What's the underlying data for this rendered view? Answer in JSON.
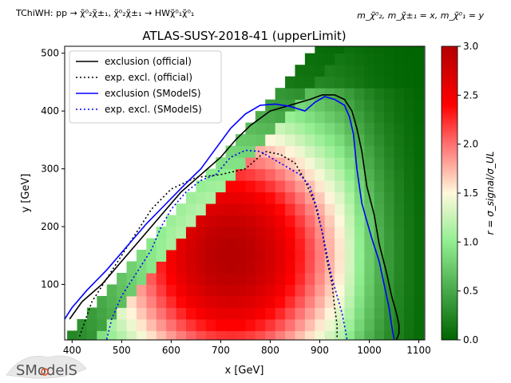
{
  "header": {
    "process": "TChiWH: pp → χ̃⁰₂χ̃±₁, χ̃⁰₂χ̃±₁ → HWχ̃⁰₁χ̃⁰₁",
    "mass_relation": "m_χ̃⁰₂, m_χ̃±₁ = x, m_χ̃⁰₁ = y"
  },
  "logo": {
    "text": "SModelS"
  },
  "chart_data": {
    "type": "heatmap",
    "title": "ATLAS-SUSY-2018-41 (upperLimit)",
    "xlabel": "x [GeV]",
    "ylabel": "y [GeV]",
    "xlim": [
      385,
      1112
    ],
    "ylim": [
      4,
      512
    ],
    "xticks": [
      400,
      500,
      600,
      700,
      800,
      900,
      1000,
      1100
    ],
    "yticks": [
      100,
      200,
      300,
      400,
      500
    ],
    "colorbar": {
      "label": "r = σ_signal/σ_UL",
      "range": [
        0,
        3
      ],
      "ticks": [
        0.0,
        0.5,
        1.0,
        1.5,
        2.0,
        2.5,
        3.0
      ],
      "colors": [
        "#006400",
        "#90ee90",
        "#fff8dc",
        "#ff0000",
        "#b40000"
      ]
    },
    "grid_cell": {
      "dx": 20,
      "dy": 20
    },
    "legend": {
      "placement": "upper-left",
      "entries": [
        {
          "label": "exclusion (official)",
          "color": "#000000",
          "dash": "solid"
        },
        {
          "label": "exp. excl. (official)",
          "color": "#000000",
          "dash": "dotted"
        },
        {
          "label": "exclusion (SModelS)",
          "color": "#0000ff",
          "dash": "solid"
        },
        {
          "label": "exp. excl. (SModelS)",
          "color": "#0000ff",
          "dash": "dotted"
        }
      ]
    },
    "series": [
      {
        "name": "exclusion (official)",
        "color": "#000000",
        "dash": "solid",
        "x": [
          395,
          420,
          460,
          500,
          540,
          580,
          620,
          660,
          700,
          730,
          760,
          800,
          840,
          880,
          905,
          930,
          950,
          965,
          975,
          985,
          990,
          995,
          1010,
          1020,
          1035,
          1045,
          1055,
          1060,
          1060,
          1055
        ],
        "y": [
          40,
          70,
          100,
          140,
          180,
          220,
          260,
          290,
          320,
          350,
          375,
          400,
          410,
          420,
          428,
          428,
          420,
          400,
          370,
          330,
          300,
          270,
          220,
          170,
          120,
          80,
          50,
          30,
          15,
          5
        ]
      },
      {
        "name": "exp. excl. (official)",
        "color": "#000000",
        "dash": "dotted",
        "x": [
          415,
          440,
          470,
          500,
          530,
          560,
          600,
          650,
          700,
          750,
          790,
          820,
          850,
          870,
          890,
          905,
          915,
          925,
          930,
          935,
          935
        ],
        "y": [
          10,
          70,
          110,
          150,
          190,
          230,
          265,
          285,
          290,
          300,
          330,
          325,
          310,
          280,
          240,
          190,
          140,
          100,
          60,
          30,
          5
        ]
      },
      {
        "name": "exclusion (SModelS)",
        "color": "#0000ff",
        "dash": "solid",
        "x": [
          385,
          400,
          430,
          470,
          510,
          550,
          590,
          630,
          660,
          690,
          720,
          750,
          780,
          810,
          840,
          870,
          890,
          910,
          930,
          950,
          960,
          968,
          975,
          985,
          995,
          1005,
          1020,
          1030,
          1040,
          1045,
          1050
        ],
        "y": [
          40,
          60,
          90,
          125,
          165,
          205,
          240,
          275,
          300,
          335,
          370,
          395,
          410,
          412,
          408,
          400,
          415,
          425,
          420,
          410,
          390,
          360,
          300,
          240,
          210,
          180,
          140,
          100,
          60,
          30,
          5
        ]
      },
      {
        "name": "exp. excl. (SModelS)",
        "color": "#0000ff",
        "dash": "dotted",
        "x": [
          470,
          480,
          500,
          530,
          560,
          580,
          600,
          630,
          660,
          690,
          720,
          750,
          780,
          800,
          830,
          860,
          880,
          895,
          905,
          915,
          925,
          935,
          945,
          952,
          955
        ],
        "y": [
          5,
          40,
          80,
          120,
          160,
          200,
          230,
          260,
          280,
          290,
          320,
          332,
          330,
          320,
          305,
          290,
          270,
          230,
          190,
          150,
          110,
          80,
          50,
          20,
          5
        ]
      }
    ]
  }
}
